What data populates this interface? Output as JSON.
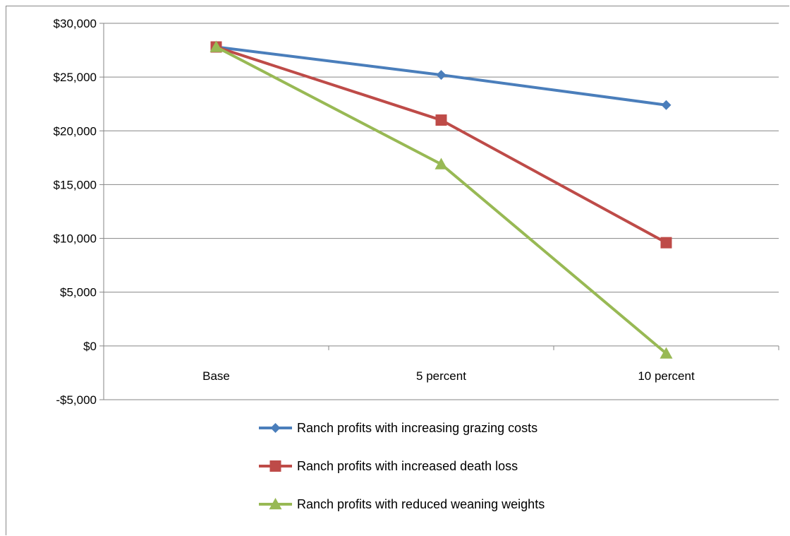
{
  "chart_data": {
    "type": "line",
    "categories": [
      "Base",
      "5 percent",
      "10 percent"
    ],
    "ylim": [
      -5000,
      30000
    ],
    "y_ticks": [
      30000,
      25000,
      20000,
      15000,
      10000,
      5000,
      0,
      -5000
    ],
    "y_tick_labels": [
      "$30,000",
      "$25,000",
      "$20,000",
      "$15,000",
      "$10,000",
      "$5,000",
      "$0",
      "-$5,000"
    ],
    "grid": true,
    "legend_position": "bottom",
    "series": [
      {
        "name": "Ranch profits with increasing grazing costs",
        "values": [
          27800,
          25200,
          22400
        ],
        "color": "#4a7ebb",
        "marker": "diamond"
      },
      {
        "name": "Ranch profits with increased death loss",
        "values": [
          27800,
          21000,
          9600
        ],
        "color": "#be4b48",
        "marker": "square"
      },
      {
        "name": "Ranch profits with reduced weaning weights",
        "values": [
          27800,
          16900,
          -700
        ],
        "color": "#98b954",
        "marker": "triangle"
      }
    ]
  }
}
